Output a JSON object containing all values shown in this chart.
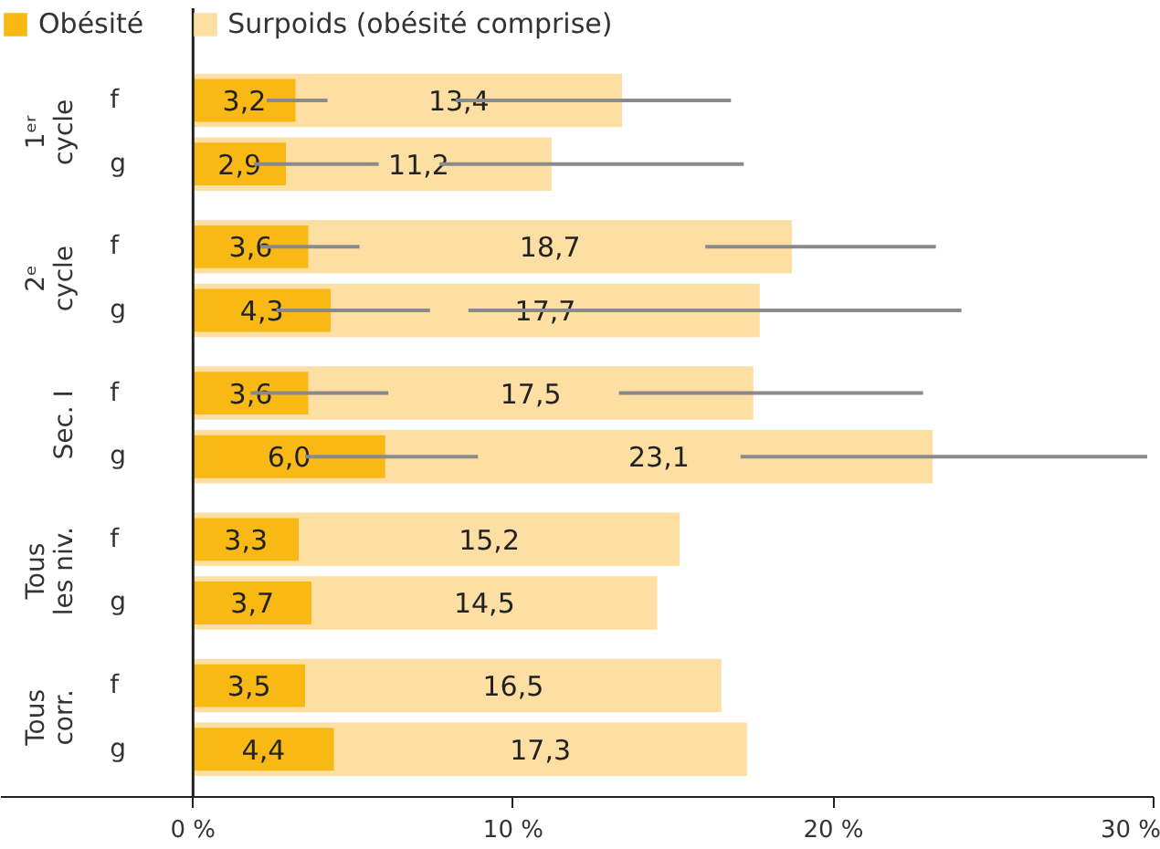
{
  "chart_data": {
    "type": "bar",
    "orientation": "horizontal",
    "categories": [
      "f",
      "g",
      "f",
      "g",
      "f",
      "g",
      "f",
      "g",
      "f",
      "g"
    ],
    "annotations": [
      "1ᵉʳ cycle",
      "2ᵉ cycle",
      "Sec. I",
      "Tous les niv.",
      "Tous corr."
    ],
    "series": [
      {
        "name": "Surpoids (obésité comprise)",
        "color": "#fddfa3",
        "values": [
          13.4,
          11.2,
          18.7,
          17.7,
          17.5,
          23.1,
          15.2,
          14.5,
          16.5,
          17.3
        ],
        "value_labels": [
          "13,4",
          "11,2",
          "18,7",
          "17,7",
          "17,5",
          "23,1",
          "15,2",
          "14,5",
          "16,5",
          "17,3"
        ],
        "errors": [
          [
            8.2,
            16.8
          ],
          [
            7.7,
            17.2
          ],
          [
            16.0,
            23.2
          ],
          [
            8.6,
            24.0
          ],
          [
            13.3,
            22.8
          ],
          [
            17.1,
            29.8
          ],
          null,
          null,
          null,
          null
        ]
      },
      {
        "name": "Obésité",
        "color": "#f9b914",
        "values": [
          3.2,
          2.9,
          3.6,
          4.3,
          3.6,
          6.0,
          3.3,
          3.7,
          3.5,
          4.4
        ],
        "value_labels": [
          "3,2",
          "2,9",
          "3,6",
          "4,3",
          "3,6",
          "6,0",
          "3,3",
          "3,7",
          "3,5",
          "4,4"
        ],
        "errors": [
          [
            2.3,
            4.2
          ],
          [
            1.9,
            5.8
          ],
          [
            2.1,
            5.2
          ],
          [
            2.6,
            7.4
          ],
          [
            1.8,
            6.1
          ],
          [
            3.5,
            8.9
          ],
          null,
          null,
          null,
          null
        ]
      }
    ],
    "xlim": [
      -6.0,
      30
    ],
    "xticks": [
      {
        "value": 0,
        "label": "0 %"
      },
      {
        "value": 10,
        "label": "10 %"
      },
      {
        "value": 20,
        "label": "20 %"
      },
      {
        "value": 30,
        "label": "30 %"
      }
    ],
    "legend": "top left"
  }
}
